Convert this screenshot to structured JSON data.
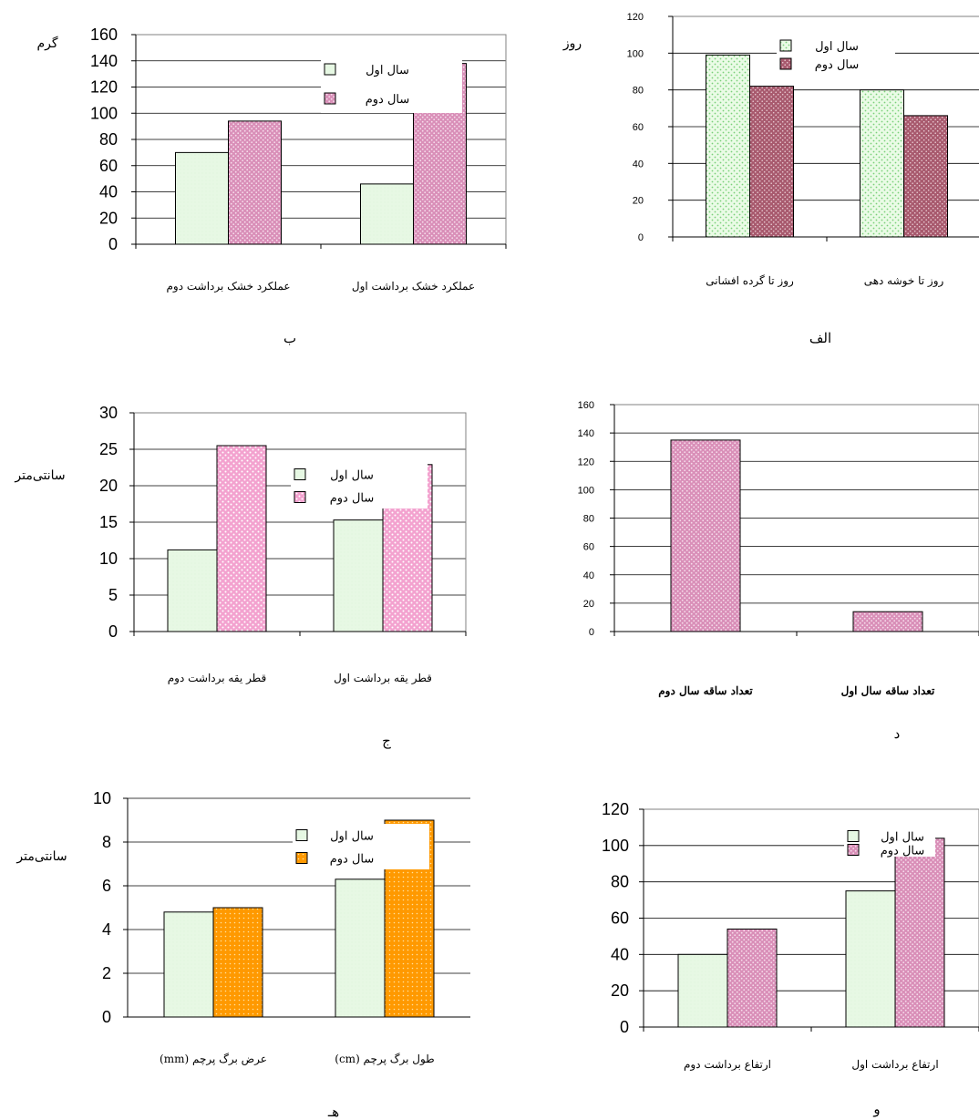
{
  "figure_colors": {
    "green_fill": "#eafbe6",
    "green_dot": "#7ad07a",
    "maroon_fill": "#a85a6e",
    "maroon_dot": "#e8c9d1",
    "pink_fill": "#f3a2cf",
    "pink_dot": "#ffffff",
    "mauve_fill": "#d98fb8",
    "mauve_dot": "#f6dceb",
    "orange_fill": "#ff9900",
    "orange_dot": "#ffe0a0",
    "light_green": "#e7f8e4"
  },
  "chart_data": [
    {
      "id": "alef",
      "type": "bar",
      "letter": "الف",
      "unit": "روز",
      "categories": [
        "روز تا گرده افشانی",
        "روز تا خوشه دهی"
      ],
      "series": [
        {
          "name": "سال اول",
          "values": [
            99,
            80
          ],
          "fill": "dotgreen"
        },
        {
          "name": "سال دوم",
          "values": [
            82,
            66
          ],
          "fill": "maroon"
        }
      ],
      "ylim": [
        0,
        120
      ],
      "yticks": [
        0,
        20,
        40,
        60,
        80,
        100,
        120
      ],
      "grid": true,
      "legend": "top-right"
    },
    {
      "id": "be",
      "type": "bar",
      "letter": "ب",
      "unit": "گرم",
      "categories": [
        "عملکرد خشک برداشت دوم",
        "عملکرد خشک برداشت اول"
      ],
      "series": [
        {
          "name": "سال اول",
          "values": [
            70,
            46
          ],
          "fill": "lightgreen"
        },
        {
          "name": "سال دوم",
          "values": [
            94,
            138
          ],
          "fill": "mauve"
        }
      ],
      "ylim": [
        0,
        160
      ],
      "yticks": [
        0,
        20,
        40,
        60,
        80,
        100,
        120,
        140,
        160
      ],
      "grid": true,
      "legend": "top-right"
    },
    {
      "id": "dal",
      "type": "bar",
      "letter": "د",
      "unit": "",
      "categories": [
        "تعداد ساقه سال دوم",
        "تعداد ساقه سال اول"
      ],
      "series": [
        {
          "name": "",
          "values": [
            135,
            14
          ],
          "fill": "mauve"
        }
      ],
      "ylim": [
        0,
        160
      ],
      "yticks": [
        0,
        20,
        40,
        60,
        80,
        100,
        120,
        140,
        160
      ],
      "grid": true,
      "legend": "none"
    },
    {
      "id": "jim",
      "type": "bar",
      "letter": "ج",
      "unit": "سانتی‌متر",
      "categories": [
        "قطر یقه برداشت دوم",
        "قطر یقه برداشت اول"
      ],
      "series": [
        {
          "name": "سال اول",
          "values": [
            11.2,
            15.3
          ],
          "fill": "lightgreen"
        },
        {
          "name": "سال دوم",
          "values": [
            25.5,
            22.9
          ],
          "fill": "pink"
        }
      ],
      "ylim": [
        0,
        30
      ],
      "yticks": [
        0,
        5,
        10,
        15,
        20,
        25,
        30
      ],
      "grid": true,
      "legend": "top-right"
    },
    {
      "id": "vav",
      "type": "bar",
      "letter": "و",
      "unit": "",
      "categories": [
        "ارتفاع برداشت دوم",
        "ارتفاع برداشت اول"
      ],
      "series": [
        {
          "name": "سال اول",
          "values": [
            40,
            75
          ],
          "fill": "lightgreen"
        },
        {
          "name": "سال دوم",
          "values": [
            54,
            104
          ],
          "fill": "mauve"
        }
      ],
      "ylim": [
        0,
        120
      ],
      "yticks": [
        0,
        20,
        40,
        60,
        80,
        100,
        120
      ],
      "grid": true,
      "legend": "top-right"
    },
    {
      "id": "he",
      "type": "bar",
      "letter": "هـ",
      "unit": "سانتی‌متر",
      "categories": [
        "عرض برگ پرچم (mm)",
        "طول برگ پرچم (cm)"
      ],
      "series": [
        {
          "name": "سال اول",
          "values": [
            4.8,
            6.3
          ],
          "fill": "lightgreen"
        },
        {
          "name": "سال دوم",
          "values": [
            5.0,
            9.0
          ],
          "fill": "orange"
        }
      ],
      "ylim": [
        0,
        10
      ],
      "yticks": [
        0,
        2,
        4,
        6,
        8,
        10
      ],
      "grid": true,
      "legend": "top-right"
    }
  ]
}
